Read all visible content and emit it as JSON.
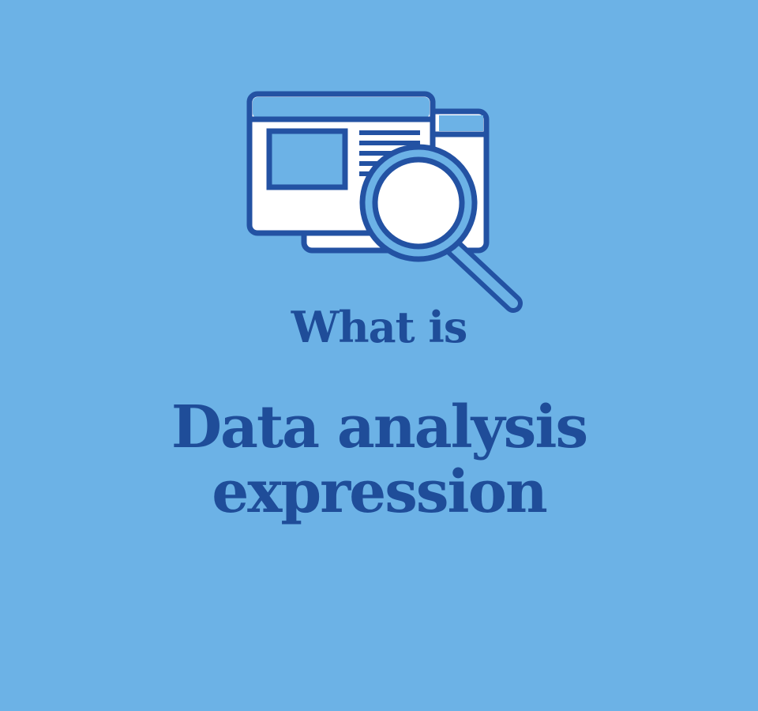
{
  "heading": {
    "kicker": "What is",
    "title_line_1": "Data analysis",
    "title_line_2": "expression"
  },
  "colors": {
    "background": "#6cb2e6",
    "text": "#1f4d99",
    "icon_stroke": "#2352a3",
    "icon_fill_light": "#ffffff"
  },
  "icons": {
    "hero": "document-search-icon"
  }
}
